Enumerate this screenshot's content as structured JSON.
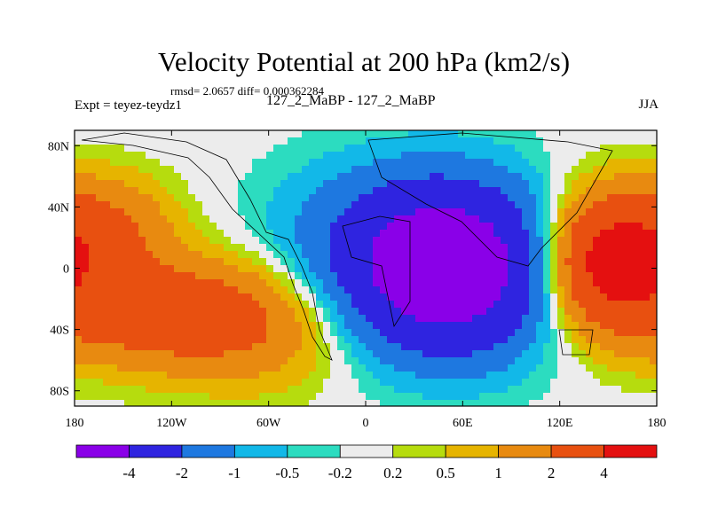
{
  "title": "Velocity Potential at 200 hPa (km2/s)",
  "stats": "rmsd= 2.0657 diff= 0.000362284",
  "experiment": "Expt = teyez-teydz1",
  "case_label": "127_2_MaBP - 127_2_MaBP",
  "season": "JJA",
  "chart_data": {
    "type": "heatmap",
    "title": "Velocity Potential at 200 hPa (km2/s)",
    "variable": "velocity potential",
    "units": "km2/s",
    "level": "200 hPa",
    "xlabel": "",
    "ylabel": "",
    "x_ticks": [
      "180",
      "120W",
      "60W",
      "0",
      "60E",
      "120E",
      "180"
    ],
    "x_tick_values": [
      -180,
      -120,
      -60,
      0,
      60,
      120,
      180
    ],
    "y_ticks": [
      "80N",
      "40N",
      "0",
      "40S",
      "80S"
    ],
    "y_tick_values": [
      80,
      40,
      0,
      -40,
      -80
    ],
    "xlim": [
      -180,
      180
    ],
    "ylim": [
      -90,
      90
    ],
    "contour_levels": [
      "-4",
      "-2",
      "-1",
      "-0.5",
      "-0.2",
      "0.2",
      "0.5",
      "1",
      "2",
      "4"
    ],
    "colors": [
      "#8a00e8",
      "#2f24e0",
      "#1e78e0",
      "#12b8e8",
      "#2cdcc0",
      "#ececec",
      "#b6dc0e",
      "#e6b400",
      "#e88a10",
      "#e85010",
      "#e41010"
    ],
    "centers": [
      {
        "lon": 50,
        "lat": 0,
        "amp": -6.2,
        "sx": 45,
        "sy": 38
      },
      {
        "lon": 150,
        "lat": 5,
        "amp": 5.0,
        "sx": 28,
        "sy": 30
      },
      {
        "lon": -120,
        "lat": -30,
        "amp": 3.0,
        "sx": 55,
        "sy": 25
      },
      {
        "lon": -160,
        "lat": 25,
        "amp": 2.0,
        "sx": 30,
        "sy": 25
      },
      {
        "lon": -60,
        "lat": -45,
        "amp": 0.8,
        "sx": 40,
        "sy": 30
      },
      {
        "lon": -10,
        "lat": 20,
        "amp": -0.7,
        "sx": 50,
        "sy": 40
      }
    ]
  },
  "colorbar": {
    "labels": [
      "-4",
      "-2",
      "-1",
      "-0.5",
      "-0.2",
      "0.2",
      "0.5",
      "1",
      "2",
      "4"
    ]
  }
}
